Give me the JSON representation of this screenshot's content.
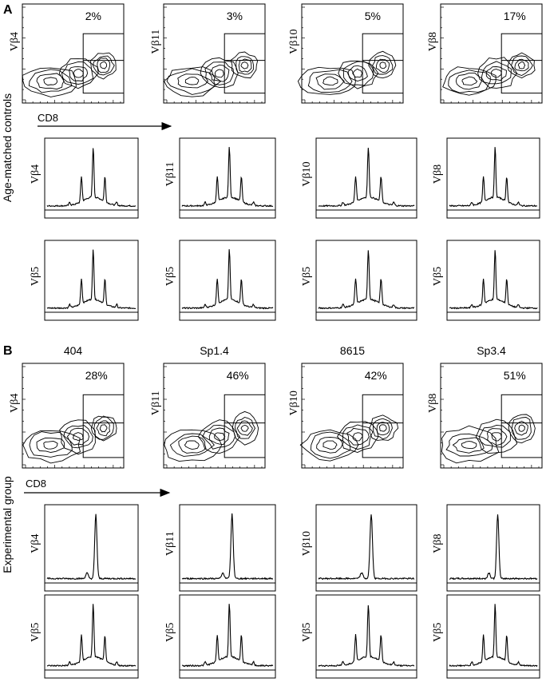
{
  "figure": {
    "panels": [
      {
        "letter": "A",
        "side_label": "Age-matched controls",
        "axis_label": "CD8",
        "column_headers": [
          "",
          "",
          "",
          ""
        ],
        "columns": [
          {
            "contour_ylabel": "Vβ4",
            "percent": "2%",
            "spectra_labels": [
              "Vβ4",
              "Vβ5"
            ],
            "hist_kind": [
              "gauss",
              "gauss"
            ]
          },
          {
            "contour_ylabel": "Vβ11",
            "percent": "3%",
            "spectra_labels": [
              "Vβ11",
              "Vβ5"
            ],
            "hist_kind": [
              "gauss",
              "gauss"
            ]
          },
          {
            "contour_ylabel": "Vβ10",
            "percent": "5%",
            "spectra_labels": [
              "Vβ10",
              "Vβ5"
            ],
            "hist_kind": [
              "gauss",
              "gauss"
            ]
          },
          {
            "contour_ylabel": "Vβ8",
            "percent": "17%",
            "spectra_labels": [
              "Vβ8",
              "Vβ5"
            ],
            "hist_kind": [
              "gauss",
              "gauss"
            ]
          }
        ]
      },
      {
        "letter": "B",
        "side_label": "Experimental group",
        "axis_label": "CD8",
        "column_headers": [
          "404",
          "Sp1.4",
          "8615",
          "Sp3.4"
        ],
        "columns": [
          {
            "contour_ylabel": "Vβ4",
            "percent": "28%",
            "spectra_labels": [
              "Vβ4",
              "Vβ5"
            ],
            "hist_kind": [
              "mono",
              "gauss"
            ]
          },
          {
            "contour_ylabel": "Vβ11",
            "percent": "46%",
            "spectra_labels": [
              "Vβ11",
              "Vβ5"
            ],
            "hist_kind": [
              "mono",
              "gauss"
            ]
          },
          {
            "contour_ylabel": "Vβ10",
            "percent": "42%",
            "spectra_labels": [
              "Vβ10",
              "Vβ5"
            ],
            "hist_kind": [
              "mono",
              "gauss"
            ]
          },
          {
            "contour_ylabel": "Vβ8",
            "percent": "51%",
            "spectra_labels": [
              "Vβ8",
              "Vβ5"
            ],
            "hist_kind": [
              "mono",
              "gauss"
            ]
          }
        ]
      }
    ]
  }
}
